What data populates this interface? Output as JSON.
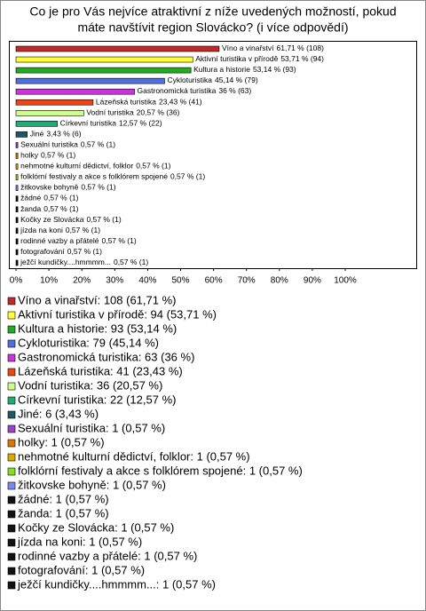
{
  "chart_data": {
    "type": "bar",
    "orientation": "horizontal",
    "title": [
      "Co je pro Vás nejvíce atraktivní z níže uvedených možností, pokud",
      "máte navštívit region Slovácko? (i více odpovědí)"
    ],
    "categories": [
      "Víno a vinařství",
      "Aktivní turistika v přírodě",
      "Kultura a historie",
      "Cykloturistika",
      "Gastronomická turistika",
      "Lázeňská turistika",
      "Vodní turistika",
      "Církevní turistika",
      "Jiné",
      "Sexuální turistika",
      "holky",
      "nehmotné kulturní dědictví, folklor",
      "folklórní festivaly a akce s folklórem spojené",
      "žitkovske bohyně",
      "žádné",
      "žanda",
      "Kočky ze Slovácka",
      "jízda na koni",
      "rodinné vazby a přátelé",
      "fotografování",
      "ježčí kundičky....hmmmm..."
    ],
    "values": [
      61.71,
      53.71,
      53.14,
      45.14,
      36,
      23.43,
      20.57,
      12.57,
      3.43,
      0.57,
      0.57,
      0.57,
      0.57,
      0.57,
      0.57,
      0.57,
      0.57,
      0.57,
      0.57,
      0.57,
      0.57
    ],
    "value_labels": [
      "61,71 % (108)",
      "53,71 % (94)",
      "53,14 % (93)",
      "45,14 % (79)",
      "36 % (63)",
      "23,43 % (41)",
      "20,57 % (36)",
      "12,57 % (22)",
      "3,43 % (6)",
      "0,57 % (1)",
      "0,57 % (1)",
      "0,57 % (1)",
      "0,57 % (1)",
      "0,57 % (1)",
      "0,57 % (1)",
      "0,57 % (1)",
      "0,57 % (1)",
      "0,57 % (1)",
      "0,57 % (1)",
      "0,57 % (1)",
      "0,57 % (1)"
    ],
    "colors": [
      "#c0282a",
      "#ffff33",
      "#22aa22",
      "#4f6fe0",
      "#cc33dd",
      "#ee4411",
      "#ccff88",
      "#22aa77",
      "#225566",
      "#9944cc",
      "#dd7700",
      "#ddaa00",
      "#88dd22",
      "#7788ee",
      "#111111",
      "#111111",
      "#111111",
      "#111111",
      "#111111",
      "#111111",
      "#111111"
    ],
    "legend": [
      "Víno a vinařství: 108 (61,71 %)",
      "Aktivní turistika v přírodě: 94 (53,71 %)",
      "Kultura a historie: 93 (53,14 %)",
      "Cykloturistika: 79 (45,14 %)",
      "Gastronomická turistika: 63 (36 %)",
      "Lázeňská turistika: 41 (23,43 %)",
      "Vodní turistika: 36 (20,57 %)",
      "Církevní turistika: 22 (12,57 %)",
      "Jiné: 6 (3,43 %)",
      "Sexuální turistika: 1 (0,57 %)",
      "holky: 1 (0,57 %)",
      "nehmotné kulturní dědictví, folklor: 1 (0,57 %)",
      "folklórní festivaly a akce s folklórem spojené: 1 (0,57 %)",
      "žitkovske bohyně: 1 (0,57 %)",
      "žádné: 1 (0,57 %)",
      "žanda: 1 (0,57 %)",
      "Kočky ze Slovácka: 1 (0,57 %)",
      "jízda na koni: 1 (0,57 %)",
      "rodinné vazby a přátelé: 1 (0,57 %)",
      "fotografování: 1 (0,57 %)",
      "ježčí kundičky....hmmmm...: 1 (0,57 %)"
    ],
    "xlim": [
      0,
      100
    ],
    "xticks": [
      {
        "value": 0,
        "label": "0%"
      },
      {
        "value": 10,
        "label": "10%"
      },
      {
        "value": 20,
        "label": "20%"
      },
      {
        "value": 30,
        "label": "30%"
      },
      {
        "value": 40,
        "label": "40%"
      },
      {
        "value": 50,
        "label": "50%"
      },
      {
        "value": 60,
        "label": "60%"
      },
      {
        "value": 70,
        "label": "70%"
      },
      {
        "value": 80,
        "label": "80%"
      },
      {
        "value": 90,
        "label": "90%"
      },
      {
        "value": 100,
        "label": "100%"
      }
    ],
    "grid": false
  }
}
